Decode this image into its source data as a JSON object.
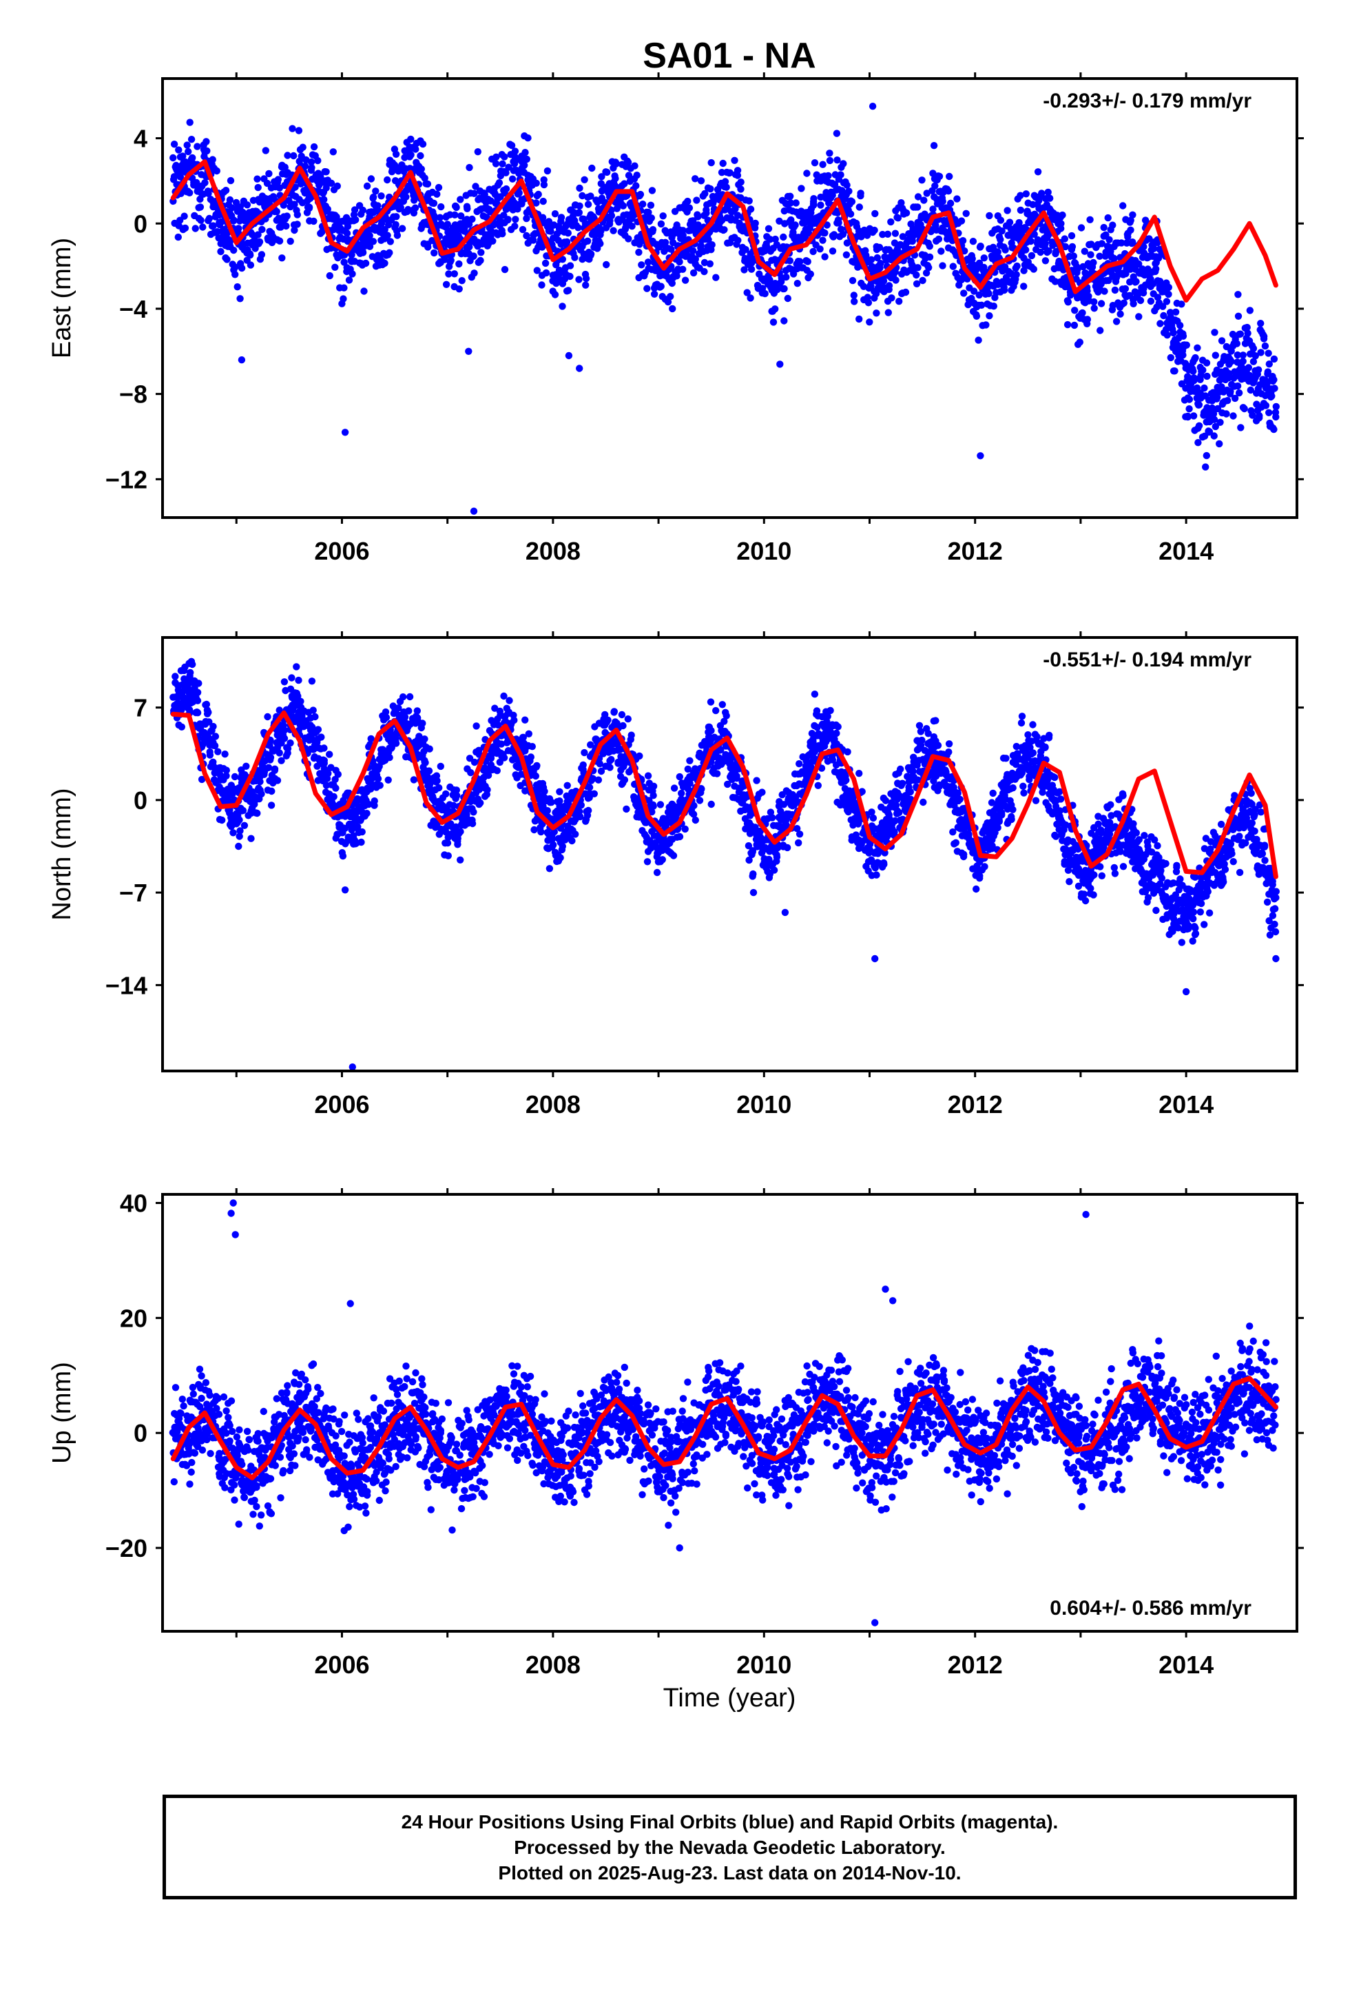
{
  "colors": {
    "observed": "#0000ff",
    "model": "#ff0000",
    "axis": "#000000"
  },
  "title": "SA01 - NA",
  "xlabel": "Time (year)",
  "caption": [
    "24 Hour Positions Using Final Orbits (blue) and Rapid Orbits (magenta).",
    "Processed by the Nevada Geodetic Laboratory.",
    "Plotted on 2025-Aug-23. Last data on 2014-Nov-10."
  ],
  "chart_data": [
    {
      "type": "scatter",
      "ylabel": "East (mm)",
      "rate": "-0.293+/- 0.179 mm/yr",
      "rate_position": "top-right",
      "xlim": [
        2004.3,
        2015.05
      ],
      "ylim": [
        -13.8,
        6.8
      ],
      "xticks": [
        2006,
        2008,
        2010,
        2012,
        2014
      ],
      "yticks": [
        4,
        0,
        -4,
        -8,
        -12
      ],
      "ytick_labels": [
        "4",
        "0",
        "−4",
        "−8",
        "−12"
      ],
      "series": [
        {
          "kind": "points",
          "color": "#0000ff",
          "x": [
            2004.4,
            2004.6,
            2004.8,
            2005.0,
            2005.2,
            2005.4,
            2005.6,
            2005.8,
            2006.0,
            2006.2,
            2006.4,
            2006.6,
            2006.8,
            2007.0,
            2007.2,
            2007.4,
            2007.6,
            2007.8,
            2008.0,
            2008.2,
            2008.4,
            2008.6,
            2008.8,
            2009.0,
            2009.2,
            2009.4,
            2009.6,
            2009.8,
            2010.0,
            2010.2,
            2010.4,
            2010.6,
            2010.8,
            2011.0,
            2011.2,
            2011.4,
            2011.6,
            2011.8,
            2012.0,
            2012.2,
            2012.4,
            2012.6,
            2012.8,
            2013.0,
            2013.2,
            2013.4,
            2013.6,
            2013.8,
            2014.0,
            2014.2,
            2014.4,
            2014.6,
            2014.8
          ],
          "y": [
            1.5,
            2.6,
            1.0,
            -1.2,
            0.3,
            0.8,
            2.5,
            1.5,
            -1.0,
            -0.8,
            0.4,
            2.3,
            1.2,
            -1.5,
            -0.3,
            0.2,
            1.9,
            1.0,
            -1.7,
            -0.6,
            -0.2,
            1.6,
            0.6,
            -2.1,
            -0.8,
            -0.4,
            1.3,
            0.2,
            -2.3,
            -1.2,
            -0.6,
            1.2,
            0.2,
            -2.6,
            -1.6,
            -1.0,
            0.8,
            -0.3,
            -2.9,
            -1.8,
            -1.2,
            0.5,
            -0.9,
            -3.3,
            -2.2,
            -1.8,
            -1.5,
            -3.5,
            -7.6,
            -8.7,
            -7.3,
            -6.1,
            -8.2
          ],
          "outliers_x": [
            2005.05,
            2006.03,
            2007.2,
            2007.25,
            2008.15,
            2008.25,
            2010.15,
            2011.03,
            2012.05
          ],
          "outliers_y": [
            -6.4,
            -9.8,
            -6.0,
            -13.5,
            -6.2,
            -6.8,
            -6.6,
            5.5,
            -10.9
          ],
          "scatter": 1.1
        },
        {
          "kind": "line",
          "color": "#ff0000",
          "x": [
            2004.4,
            2004.55,
            2004.7,
            2004.85,
            2005.0,
            2005.15,
            2005.3,
            2005.45,
            2005.6,
            2005.75,
            2005.9,
            2006.05,
            2006.2,
            2006.35,
            2006.5,
            2006.65,
            2006.8,
            2006.95,
            2007.1,
            2007.25,
            2007.4,
            2007.55,
            2007.7,
            2007.85,
            2008.0,
            2008.15,
            2008.3,
            2008.45,
            2008.6,
            2008.75,
            2008.9,
            2009.05,
            2009.2,
            2009.35,
            2009.5,
            2009.65,
            2009.8,
            2009.95,
            2010.1,
            2010.25,
            2010.4,
            2010.55,
            2010.7,
            2010.85,
            2011.0,
            2011.15,
            2011.3,
            2011.45,
            2011.6,
            2011.75,
            2011.9,
            2012.05,
            2012.2,
            2012.35,
            2012.5,
            2012.65,
            2012.8,
            2012.95,
            2013.1,
            2013.25,
            2013.4,
            2013.55,
            2013.7,
            2013.85,
            2014.0,
            2014.15,
            2014.3,
            2014.45,
            2014.6,
            2014.75,
            2014.85
          ],
          "y": [
            1.2,
            2.3,
            2.9,
            0.9,
            -0.9,
            0.0,
            0.6,
            1.2,
            2.6,
            1.3,
            -0.9,
            -1.3,
            -0.2,
            0.3,
            1.2,
            2.4,
            0.6,
            -1.4,
            -1.2,
            -0.3,
            0.1,
            1.1,
            2.0,
            0.2,
            -1.7,
            -1.2,
            -0.4,
            0.2,
            1.5,
            1.5,
            -1.0,
            -2.1,
            -1.2,
            -0.8,
            0.0,
            1.4,
            0.8,
            -1.8,
            -2.4,
            -1.2,
            -1.0,
            0.0,
            1.1,
            -0.9,
            -2.6,
            -2.3,
            -1.6,
            -1.2,
            0.3,
            0.5,
            -2.1,
            -3.0,
            -1.9,
            -1.6,
            -0.5,
            0.5,
            -1.0,
            -3.2,
            -2.6,
            -2.0,
            -1.8,
            -1.0,
            0.3,
            -2.0,
            -3.6,
            -2.6,
            -2.2,
            -1.2,
            0.0,
            -1.5,
            -2.9
          ]
        }
      ]
    },
    {
      "type": "scatter",
      "ylabel": "North (mm)",
      "rate": "-0.551+/- 0.194 mm/yr",
      "rate_position": "top-right",
      "xlim": [
        2004.3,
        2015.05
      ],
      "ylim": [
        -20.5,
        12.3
      ],
      "xticks": [
        2006,
        2008,
        2010,
        2012,
        2014
      ],
      "yticks": [
        7,
        0,
        -7,
        -14
      ],
      "ytick_labels": [
        "7",
        "0",
        "−7",
        "−14"
      ],
      "series": [
        {
          "kind": "points",
          "color": "#0000ff",
          "x": [
            2004.4,
            2004.6,
            2004.8,
            2005.0,
            2005.2,
            2005.4,
            2005.6,
            2005.8,
            2006.0,
            2006.2,
            2006.4,
            2006.6,
            2006.8,
            2007.0,
            2007.2,
            2007.4,
            2007.6,
            2007.8,
            2008.0,
            2008.2,
            2008.4,
            2008.6,
            2008.8,
            2009.0,
            2009.2,
            2009.4,
            2009.6,
            2009.8,
            2010.0,
            2010.2,
            2010.4,
            2010.6,
            2010.8,
            2011.0,
            2011.2,
            2011.4,
            2011.6,
            2011.8,
            2012.0,
            2012.2,
            2012.4,
            2012.6,
            2012.8,
            2013.0,
            2013.2,
            2013.4,
            2013.6,
            2013.8,
            2014.0,
            2014.2,
            2014.4,
            2014.6,
            2014.8
          ],
          "y": [
            7.5,
            8.0,
            2.5,
            -1.0,
            1.5,
            4.5,
            7.0,
            3.0,
            -1.5,
            -0.5,
            4.0,
            6.0,
            2.0,
            -2.0,
            -0.5,
            3.5,
            5.5,
            1.5,
            -2.5,
            -0.8,
            3.0,
            5.0,
            1.0,
            -3.0,
            -1.0,
            2.5,
            4.5,
            0.5,
            -3.5,
            -1.5,
            2.0,
            5.0,
            0.5,
            -4.0,
            -1.5,
            1.5,
            4.0,
            0.0,
            -4.5,
            -1.0,
            2.5,
            3.5,
            -1.5,
            -5.0,
            -3.0,
            -2.0,
            -5.0,
            -7.0,
            -9.0,
            -6.0,
            -3.0,
            -0.5,
            -7.5
          ],
          "outliers_x": [
            2005.02,
            2006.03,
            2006.1,
            2009.9,
            2010.2,
            2011.05,
            2014.0,
            2014.85
          ],
          "outliers_y": [
            -3.5,
            -6.8,
            -20.2,
            -7.0,
            -8.5,
            -12.0,
            -14.5,
            -12.0
          ],
          "scatter": 1.3
        },
        {
          "kind": "line",
          "color": "#ff0000",
          "x": [
            2004.4,
            2004.55,
            2004.7,
            2004.85,
            2005.0,
            2005.15,
            2005.3,
            2005.45,
            2005.6,
            2005.75,
            2005.9,
            2006.05,
            2006.2,
            2006.35,
            2006.5,
            2006.65,
            2006.8,
            2006.95,
            2007.1,
            2007.25,
            2007.4,
            2007.55,
            2007.7,
            2007.85,
            2008.0,
            2008.15,
            2008.3,
            2008.45,
            2008.6,
            2008.75,
            2008.9,
            2009.05,
            2009.2,
            2009.35,
            2009.5,
            2009.65,
            2009.8,
            2009.95,
            2010.1,
            2010.25,
            2010.4,
            2010.55,
            2010.7,
            2010.85,
            2011.0,
            2011.15,
            2011.3,
            2011.45,
            2011.6,
            2011.75,
            2011.9,
            2012.05,
            2012.2,
            2012.35,
            2012.5,
            2012.65,
            2012.8,
            2012.95,
            2013.1,
            2013.25,
            2013.4,
            2013.55,
            2013.7,
            2013.85,
            2014.0,
            2014.15,
            2014.3,
            2014.45,
            2014.6,
            2014.75,
            2014.85
          ],
          "y": [
            6.5,
            6.4,
            2.0,
            -0.5,
            -0.4,
            2.0,
            5.0,
            6.6,
            4.5,
            0.5,
            -1.1,
            -0.5,
            2.0,
            5.0,
            6.0,
            4.0,
            -0.2,
            -1.7,
            -1.0,
            1.5,
            4.5,
            5.6,
            3.3,
            -0.9,
            -2.1,
            -1.2,
            1.3,
            4.2,
            5.3,
            3.0,
            -1.2,
            -2.6,
            -1.7,
            0.8,
            3.8,
            4.7,
            2.5,
            -1.6,
            -3.2,
            -2.2,
            0.4,
            3.5,
            3.8,
            1.6,
            -2.8,
            -3.7,
            -2.6,
            0.3,
            3.3,
            3.0,
            0.6,
            -4.2,
            -4.3,
            -2.9,
            -0.3,
            2.8,
            2.1,
            -2.3,
            -5.0,
            -4.1,
            -1.6,
            1.6,
            2.2,
            -1.6,
            -5.4,
            -5.5,
            -3.8,
            -0.8,
            1.9,
            -0.4,
            -5.8
          ]
        }
      ]
    },
    {
      "type": "scatter",
      "ylabel": "Up (mm)",
      "rate": "0.604+/- 0.586 mm/yr",
      "rate_position": "bottom-right",
      "xlim": [
        2004.3,
        2015.05
      ],
      "ylim": [
        -34.5,
        41.5
      ],
      "xticks": [
        2006,
        2008,
        2010,
        2012,
        2014
      ],
      "yticks": [
        40,
        20,
        0,
        -20
      ],
      "ytick_labels": [
        "40",
        "20",
        "0",
        "−20"
      ],
      "series": [
        {
          "kind": "points",
          "color": "#0000ff",
          "x": [
            2004.4,
            2004.6,
            2004.8,
            2005.0,
            2005.2,
            2005.4,
            2005.6,
            2005.8,
            2006.0,
            2006.2,
            2006.4,
            2006.6,
            2006.8,
            2007.0,
            2007.2,
            2007.4,
            2007.6,
            2007.8,
            2008.0,
            2008.2,
            2008.4,
            2008.6,
            2008.8,
            2009.0,
            2009.2,
            2009.4,
            2009.6,
            2009.8,
            2010.0,
            2010.2,
            2010.4,
            2010.6,
            2010.8,
            2011.0,
            2011.2,
            2011.4,
            2011.6,
            2011.8,
            2012.0,
            2012.2,
            2012.4,
            2012.6,
            2012.8,
            2013.0,
            2013.2,
            2013.4,
            2013.6,
            2013.8,
            2014.0,
            2014.2,
            2014.4,
            2014.6,
            2014.8
          ],
          "y": [
            -2.0,
            3.0,
            1.0,
            -6.0,
            -7.0,
            -2.0,
            4.0,
            2.0,
            -6.0,
            -6.0,
            -1.0,
            4.0,
            1.0,
            -6.0,
            -5.0,
            0.0,
            5.0,
            2.0,
            -6.0,
            -4.0,
            1.0,
            5.0,
            2.0,
            -5.0,
            -4.0,
            1.0,
            6.0,
            2.0,
            -4.0,
            -3.0,
            2.0,
            6.0,
            2.0,
            -4.0,
            -3.0,
            3.0,
            7.0,
            2.0,
            -3.0,
            -2.0,
            3.0,
            8.0,
            3.0,
            -3.0,
            -2.0,
            3.0,
            8.0,
            4.0,
            -2.0,
            -1.0,
            4.0,
            9.0,
            5.0
          ],
          "outliers_x": [
            2004.95,
            2004.97,
            2004.99,
            2006.08,
            2011.05,
            2011.15,
            2011.22,
            2013.05,
            2009.2
          ],
          "outliers_y": [
            38.2,
            40.0,
            34.5,
            22.5,
            -33.0,
            25.0,
            23.0,
            38.0,
            -20.0
          ],
          "scatter": 4.2
        },
        {
          "kind": "line",
          "color": "#ff0000",
          "x": [
            2004.4,
            2004.55,
            2004.7,
            2004.85,
            2005.0,
            2005.15,
            2005.3,
            2005.45,
            2005.6,
            2005.75,
            2005.9,
            2006.05,
            2006.2,
            2006.35,
            2006.5,
            2006.65,
            2006.8,
            2006.95,
            2007.1,
            2007.25,
            2007.4,
            2007.55,
            2007.7,
            2007.85,
            2008.0,
            2008.15,
            2008.3,
            2008.45,
            2008.6,
            2008.75,
            2008.9,
            2009.05,
            2009.2,
            2009.35,
            2009.5,
            2009.65,
            2009.8,
            2009.95,
            2010.1,
            2010.25,
            2010.4,
            2010.55,
            2010.7,
            2010.85,
            2011.0,
            2011.15,
            2011.3,
            2011.45,
            2011.6,
            2011.75,
            2011.9,
            2012.05,
            2012.2,
            2012.35,
            2012.5,
            2012.65,
            2012.8,
            2012.95,
            2013.1,
            2013.25,
            2013.4,
            2013.55,
            2013.7,
            2013.85,
            2014.0,
            2014.15,
            2014.3,
            2014.45,
            2014.6,
            2014.75,
            2014.85
          ],
          "y": [
            -4.5,
            1.0,
            3.5,
            -1.5,
            -6.0,
            -7.8,
            -5.0,
            0.5,
            4.0,
            1.5,
            -4.5,
            -7.0,
            -6.5,
            -2.5,
            2.5,
            4.5,
            0.5,
            -4.5,
            -6.0,
            -5.0,
            -0.5,
            4.5,
            5.0,
            -0.5,
            -5.5,
            -6.0,
            -3.0,
            2.5,
            5.8,
            3.0,
            -2.5,
            -5.5,
            -5.0,
            -0.5,
            5.0,
            6.0,
            1.5,
            -3.5,
            -4.5,
            -3.0,
            2.0,
            6.5,
            5.0,
            -0.5,
            -4.0,
            -4.0,
            0.5,
            6.5,
            7.5,
            3.0,
            -2.0,
            -3.5,
            -2.0,
            4.0,
            8.0,
            5.5,
            0.0,
            -3.0,
            -2.5,
            2.0,
            7.5,
            8.5,
            4.0,
            -1.0,
            -2.5,
            -1.5,
            3.5,
            8.5,
            9.5,
            6.5,
            4.5
          ]
        }
      ]
    }
  ]
}
